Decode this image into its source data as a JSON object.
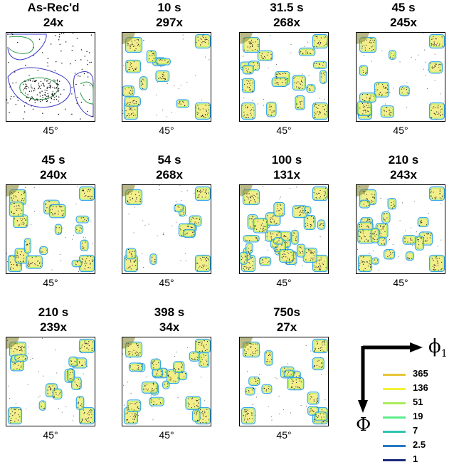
{
  "panels": [
    {
      "time": "As-Rec'd",
      "mag": "24x",
      "angle": "45°",
      "kind": "asrec"
    },
    {
      "time": "10 s",
      "mag": "297x",
      "angle": "45°",
      "kind": "map"
    },
    {
      "time": "31.5 s",
      "mag": "268x",
      "angle": "45°",
      "kind": "map"
    },
    {
      "time": "45 s",
      "mag": "245x",
      "angle": "45°",
      "kind": "map"
    },
    {
      "time": "45 s",
      "mag": "240x",
      "angle": "45°",
      "kind": "map"
    },
    {
      "time": "54 s",
      "mag": "268x",
      "angle": "45°",
      "kind": "map"
    },
    {
      "time": "100 s",
      "mag": "131x",
      "angle": "45°",
      "kind": "map"
    },
    {
      "time": "210 s",
      "mag": "243x",
      "angle": "45°",
      "kind": "map"
    },
    {
      "time": "210 s",
      "mag": "239x",
      "angle": "45°",
      "kind": "map"
    },
    {
      "time": "398 s",
      "mag": "34x",
      "angle": "45°",
      "kind": "map"
    },
    {
      "time": "750s",
      "mag": "27x",
      "angle": "45°",
      "kind": "map"
    }
  ],
  "legend": {
    "levels": [
      {
        "label": "365",
        "color": "#e8c53a"
      },
      {
        "label": "136",
        "color": "#f2f23a"
      },
      {
        "label": "51",
        "color": "#a8ec5a"
      },
      {
        "label": "19",
        "color": "#5cec8a"
      },
      {
        "label": "7",
        "color": "#2ec4b0"
      },
      {
        "label": "2.5",
        "color": "#2a78c4"
      },
      {
        "label": "1",
        "color": "#1a2a7a"
      }
    ],
    "axis_x_symbol": "ϕ",
    "axis_x_subscript": "1",
    "axis_y_symbol": "Φ"
  }
}
